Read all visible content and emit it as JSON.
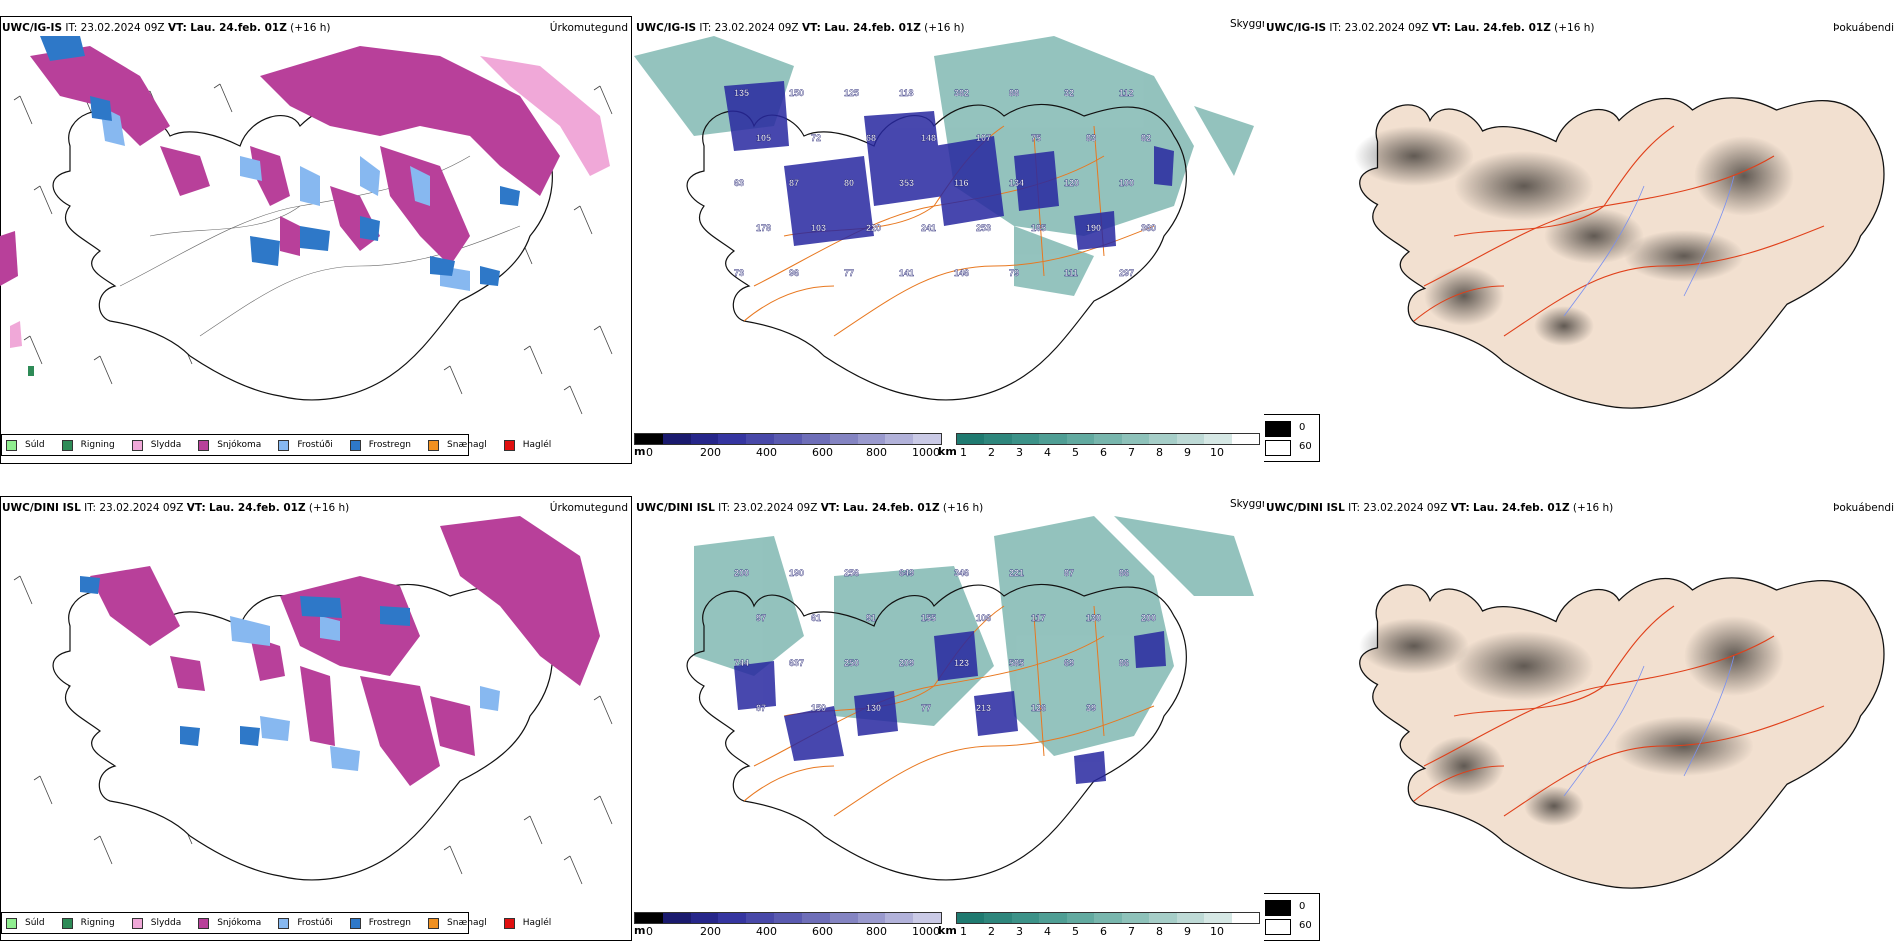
{
  "rows": [
    {
      "model": "UWC/IG-IS",
      "it_label": "IT:",
      "it_value": "23.02.2024 09Z",
      "vt_label": "VT:",
      "vt_value": "Lau. 24.feb. 01Z",
      "lead": "(+16 h)"
    },
    {
      "model": "UWC/DINI ISL",
      "it_label": "IT:",
      "it_value": "23.02.2024 09Z",
      "vt_label": "VT:",
      "vt_value": "Lau. 24.feb. 01Z",
      "lead": "(+16 h)"
    }
  ],
  "panels": {
    "left": {
      "name": "Úrkomutegund"
    },
    "mid": {
      "name": "Skyggni"
    },
    "right": {
      "name": "Þokuábendi"
    }
  },
  "precip_legend": [
    {
      "label": "Súld",
      "color": "#90ee90"
    },
    {
      "label": "Rigning",
      "color": "#2e8b57"
    },
    {
      "label": "Slydda",
      "color": "#f0a8d8"
    },
    {
      "label": "Snjókoma",
      "color": "#b8409a"
    },
    {
      "label": "Frostúði",
      "color": "#87b8f0"
    },
    {
      "label": "Frostregn",
      "color": "#2e78c8"
    },
    {
      "label": "Snæhagl",
      "color": "#f09020"
    },
    {
      "label": "Haglél",
      "color": "#e01010"
    }
  ],
  "ceiling_bar": {
    "unit": "m",
    "ticks": [
      "0",
      "200",
      "400",
      "600",
      "800",
      "1000"
    ],
    "colors": [
      "#000000",
      "#1a1a6e",
      "#26268a",
      "#3535a0",
      "#4848a8",
      "#5a5ab0",
      "#6e6eb8",
      "#8484c2",
      "#9a9ace",
      "#b2b2da",
      "#cacae6"
    ]
  },
  "visibility_bar": {
    "unit": "km",
    "ticks": [
      "1",
      "2",
      "3",
      "4",
      "5",
      "6",
      "7",
      "8",
      "9",
      "10"
    ],
    "colors": [
      "#1f7a70",
      "#2e867c",
      "#3c9288",
      "#4f9e94",
      "#62aaa0",
      "#78b6ad",
      "#8ec2ba",
      "#a6cec8",
      "#bedad6",
      "#d6e8e5",
      "#ffffff"
    ]
  },
  "fog_legend": {
    "low": "0",
    "high": "60"
  },
  "map_colors": {
    "snow": "#b8409a",
    "sleet": "#f0a8d8",
    "ice_drizzle": "#87b8f0",
    "freezing_rain": "#2e78c8",
    "rain": "#2e8b57",
    "teal": "#3c9288",
    "navy": "#2828a0",
    "road": "#e87820",
    "land": "#f2e0d0",
    "road_red": "#e0401a",
    "river": "#7a90f0"
  },
  "ceiling_labels_top": [
    "135",
    "150",
    "125",
    "118",
    "382",
    "88",
    "32",
    "112",
    "105",
    "72",
    "68",
    "148",
    "107",
    "75",
    "83",
    "82",
    "63",
    "87",
    "80",
    "353",
    "116",
    "134",
    "120",
    "100",
    "178",
    "103",
    "220",
    "241",
    "253",
    "185",
    "190",
    "360",
    "73",
    "96",
    "77",
    "141",
    "146",
    "79",
    "111",
    "297"
  ],
  "ceiling_labels_bottom": [
    "200",
    "190",
    "256",
    "649",
    "346",
    "221",
    "87",
    "86",
    "97",
    "61",
    "91",
    "155",
    "106",
    "117",
    "130",
    "200",
    "744",
    "637",
    "250",
    "209",
    "123",
    "585",
    "69",
    "86",
    "87",
    "150",
    "130",
    "77",
    "213",
    "126",
    "39"
  ]
}
